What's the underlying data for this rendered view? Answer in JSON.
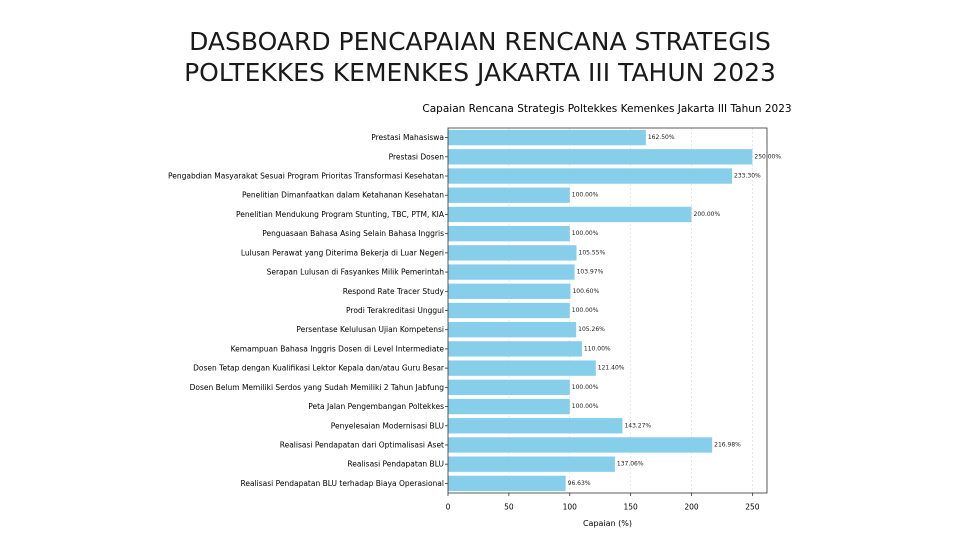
{
  "slide": {
    "title_line1": "DASBOARD PENCAPAIAN RENCANA STRATEGIS",
    "title_line2": "POLTEKKES KEMENKES JAKARTA III TAHUN 2023"
  },
  "chart_data": {
    "type": "bar",
    "orientation": "horizontal",
    "title": "Capaian Rencana Strategis Poltekkes Kemenkes Jakarta III Tahun 2023",
    "xlabel": "Capaian (%)",
    "ylabel": "",
    "xlim": [
      0,
      262
    ],
    "xticks": [
      0,
      50,
      100,
      150,
      200,
      250
    ],
    "grid": true,
    "bar_color": "#87CEEB",
    "categories": [
      "Prestasi Mahasiswa",
      "Prestasi Dosen",
      "Pengabdian Masyarakat Sesuai Program Prioritas Transformasi Kesehatan",
      "Penelitian Dimanfaatkan dalam Ketahanan Kesehatan",
      "Penelitian Mendukung Program Stunting, TBC, PTM, KIA",
      "Penguasaan Bahasa Asing Selain Bahasa Inggris",
      "Lulusan Perawat yang Diterima Bekerja di Luar Negeri",
      "Serapan Lulusan di Fasyankes Milik Pemerintah",
      "Respond Rate Tracer Study",
      "Prodi Terakreditasi Unggul",
      "Persentase Kelulusan Ujian Kompetensi",
      "Kemampuan Bahasa Inggris Dosen di Level Intermediate",
      "Dosen Tetap dengan Kualifikasi Lektor Kepala dan/atau Guru Besar",
      "Dosen Belum Memiliki Serdos yang Sudah Memiliki 2 Tahun Jabfung",
      "Peta Jalan Pengembangan Poltekkes",
      "Penyelesaian Modernisasi BLU",
      "Realisasi Pendapatan dari Optimalisasi Aset",
      "Realisasi Pendapatan BLU",
      "Realisasi Pendapatan BLU terhadap Biaya Operasional"
    ],
    "values": [
      162.5,
      250.0,
      233.3,
      100.0,
      200.0,
      100.0,
      105.55,
      103.97,
      100.6,
      100.0,
      105.26,
      110.0,
      121.4,
      100.0,
      100.0,
      143.27,
      216.98,
      137.06,
      96.63
    ],
    "value_labels": [
      "162.50%",
      "250.00%",
      "233.30%",
      "100.00%",
      "200.00%",
      "100.00%",
      "105.55%",
      "103.97%",
      "100.60%",
      "100.00%",
      "105.26%",
      "110.00%",
      "121.40%",
      "100.00%",
      "100.00%",
      "143.27%",
      "216.98%",
      "137.06%",
      "96.63%"
    ]
  }
}
